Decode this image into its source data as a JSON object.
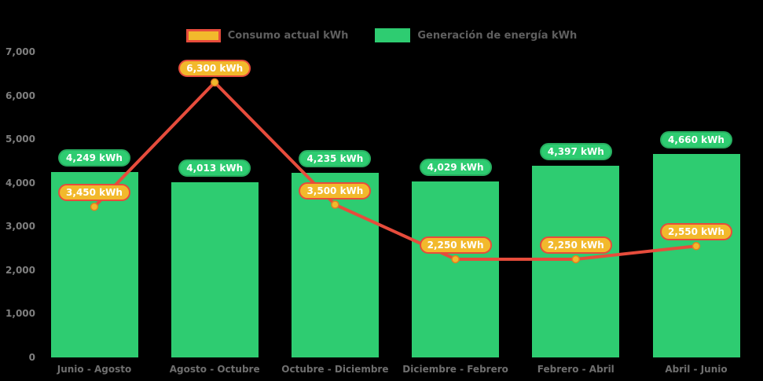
{
  "background": "#000000",
  "colors": {
    "bar": "#2ECC71",
    "bar_label_border": "#27AE60",
    "line": "#E74C3C",
    "marker_fill": "#F2B92C",
    "marker_ring": "#E67E22",
    "line_label_fill": "#F2B92C",
    "line_label_border": "#E74C3C",
    "axis_text": "#7f7f7f",
    "legend_text": "#5f5f5f"
  },
  "legend": {
    "items": [
      {
        "label": "Consumo actual kWh",
        "series": "line"
      },
      {
        "label": "Generación de energía kWh",
        "series": "bar"
      }
    ]
  },
  "chart_data": {
    "type": "bar+line",
    "title": "",
    "categories": [
      "Junio - Agosto",
      "Agosto - Octubre",
      "Octubre - Diciembre",
      "Diciembre - Febrero",
      "Febrero - Abril",
      "Abril - Junio"
    ],
    "series": [
      {
        "name": "Generación de energía kWh",
        "type": "bar",
        "values": [
          4249,
          4013,
          4235,
          4029,
          4397,
          4660
        ],
        "labels": [
          "4,249 kWh",
          "4,013 kWh",
          "4,235 kWh",
          "4,029 kWh",
          "4,397 kWh",
          "4,660 kWh"
        ]
      },
      {
        "name": "Consumo actual kWh",
        "type": "line",
        "values": [
          3450,
          6300,
          3500,
          2250,
          2250,
          2550
        ],
        "labels": [
          "3,450 kWh",
          "6,300 kWh",
          "3,500 kWh",
          "2,250 kWh",
          "2,250 kWh",
          "2,550 kWh"
        ]
      }
    ],
    "y_axis": {
      "min": 0,
      "max": 7000,
      "tick_interval": 1000,
      "tick_labels": [
        "0",
        "1,000",
        "2,000",
        "3,000",
        "4,000",
        "5,000",
        "6,000",
        "7,000"
      ]
    },
    "x_axis_label": "",
    "y_axis_label": "",
    "grid": false,
    "legend_position": "top"
  }
}
